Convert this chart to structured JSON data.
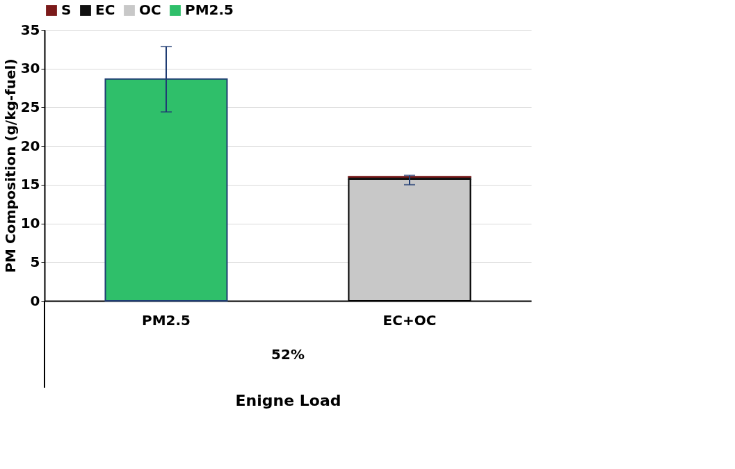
{
  "chart_data": {
    "type": "bar",
    "stacked": true,
    "xlabel": "Enigne Load",
    "ylabel": "PM Composition (g/kg-fuel)",
    "categories": [
      "PM2.5",
      "EC+OC"
    ],
    "series": [
      {
        "name": "PM2.5",
        "color": "#2fbf6a",
        "values": [
          28.65,
          null
        ],
        "errors": [
          [
            24.4,
            32.85
          ],
          null
        ]
      },
      {
        "name": "OC",
        "color": "#c8c8c8",
        "values": [
          null,
          15.7
        ],
        "errors": [
          null,
          null
        ]
      },
      {
        "name": "EC",
        "color": "#111111",
        "values": [
          null,
          0.3
        ],
        "errors": [
          null,
          null
        ]
      },
      {
        "name": "S",
        "color": "#7b1a1a",
        "values": [
          null,
          0.05
        ],
        "errors": [
          null,
          [
            15.0,
            16.2
          ]
        ]
      }
    ],
    "ylim": [
      0,
      35
    ],
    "yticks": [
      0,
      5,
      10,
      15,
      20,
      25,
      30,
      35
    ],
    "grid": "y",
    "legend": "top",
    "annotations": [
      "52%"
    ]
  }
}
